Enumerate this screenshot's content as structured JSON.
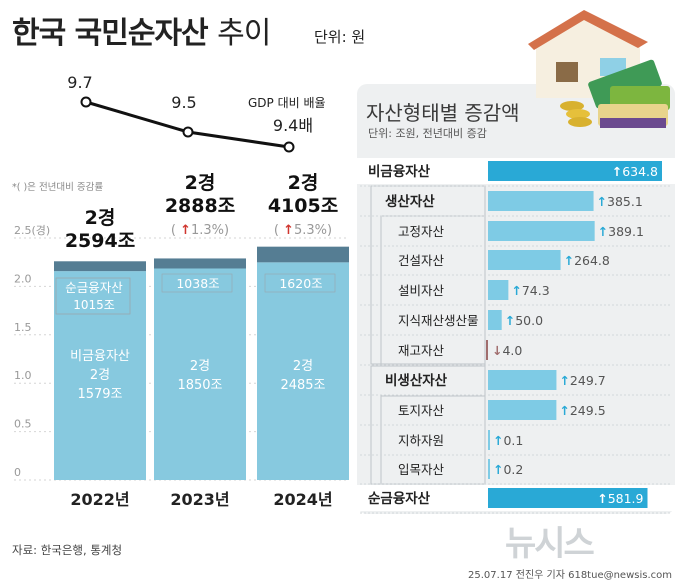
{
  "title": {
    "main": "한국 국민순자산",
    "accent": "추이",
    "unit": "단위: 원"
  },
  "note": "*( )은 전년대비 증감률",
  "source": "자료: 한국은행, 통계청",
  "credit": "25.07.17 전진우 기자 618tue@newsis.com",
  "watermark": "뉴시스",
  "colors": {
    "nonfin": "#87c9df",
    "netfin": "#557d93",
    "panelbar": "#7ecbe5",
    "highlight": "#29a9d6",
    "down": "#a06d6d",
    "up": "#d0362f"
  },
  "chart_data": [
    {
      "type": "bar",
      "stacked": true,
      "categories": [
        "2022년",
        "2023년",
        "2024년"
      ],
      "ylim": [
        0,
        2.5
      ],
      "yticks": [
        "0",
        "0.5",
        "1.0",
        "1.5",
        "2.0",
        "2.5(경)"
      ],
      "series": [
        {
          "name": "비금융자산",
          "values": [
            2.1579,
            2.185,
            2.2485
          ],
          "labels": [
            "2경\n1579조",
            "2경\n1850조",
            "2경\n2485조"
          ]
        },
        {
          "name": "순금융자산",
          "values": [
            0.1015,
            0.1038,
            0.162
          ],
          "labels": [
            "1015조",
            "1038조",
            "1620조"
          ]
        }
      ],
      "totals": [
        "2경\n2594조",
        "2경\n2888조",
        "2경\n4105조"
      ],
      "changes": [
        "",
        "1.3%",
        "5.3%"
      ]
    },
    {
      "type": "line",
      "series_name": "GDP 대비 배율",
      "x": [
        "2022년",
        "2023년",
        "2024년"
      ],
      "values": [
        9.7,
        9.5,
        9.4
      ],
      "labels": [
        "9.7",
        "9.5",
        "9.4배"
      ]
    },
    {
      "type": "bar",
      "orientation": "horizontal",
      "title": "자산형태별 증감액",
      "unit": "단위: 조원, 전년대비 증감",
      "categories": [
        "비금융자산",
        "생산자산",
        "고정자산",
        "건설자산",
        "설비자산",
        "지식재산생산물",
        "재고자산",
        "비생산자산",
        "토지자산",
        "지하자원",
        "입목자산",
        "순금융자산"
      ],
      "values": [
        634.8,
        385.1,
        389.1,
        264.8,
        74.3,
        50.0,
        -4.0,
        249.7,
        249.5,
        0.1,
        0.2,
        581.9
      ],
      "labels": [
        "634.8",
        "385.1",
        "389.1",
        "264.8",
        "74.3",
        "50.0",
        "4.0",
        "249.7",
        "249.5",
        "0.1",
        "0.2",
        "581.9"
      ]
    }
  ]
}
